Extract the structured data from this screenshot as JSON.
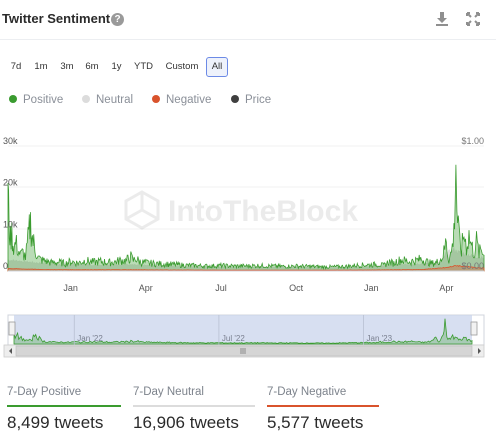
{
  "header": {
    "title": "Twitter Sentiment",
    "help_icon": "question-circle-icon",
    "download_icon": "download-icon",
    "fullscreen_icon": "fullscreen-icon"
  },
  "range_buttons": [
    "7d",
    "1m",
    "3m",
    "6m",
    "1y",
    "YTD",
    "Custom",
    "All"
  ],
  "active_range": "All",
  "watermark": "IntoTheBlock",
  "chart_data": {
    "type": "area",
    "title": "Twitter Sentiment",
    "x_tick_labels": [
      "Jan",
      "Apr",
      "Jul",
      "Oct",
      "Jan",
      "Apr"
    ],
    "y_left": {
      "ticks": [
        "0",
        "10k",
        "20k",
        "30k"
      ],
      "ylim": [
        0,
        30000
      ]
    },
    "y_right": {
      "ticks": [
        "$0.00",
        "$1.00"
      ],
      "ylim": [
        0,
        1
      ]
    },
    "legend_position": "top-left",
    "x_start_month_index": -2.5,
    "x_end_month_index": 16.5,
    "series": [
      {
        "name": "Positive",
        "color": "#3a9b2f",
        "points": [
          [
            -2.5,
            18500
          ],
          [
            -2.45,
            10500
          ],
          [
            -2.4,
            7600
          ],
          [
            -2.35,
            9000
          ],
          [
            -2.3,
            6500
          ],
          [
            -2.25,
            5400
          ],
          [
            -2.2,
            6800
          ],
          [
            -2.1,
            5200
          ],
          [
            -2.0,
            3800
          ],
          [
            -1.9,
            4400
          ],
          [
            -1.8,
            3300
          ],
          [
            -1.7,
            7400
          ],
          [
            -1.65,
            9800
          ],
          [
            -1.6,
            11500
          ],
          [
            -1.55,
            9000
          ],
          [
            -1.5,
            7000
          ],
          [
            -1.45,
            6300
          ],
          [
            -1.4,
            5000
          ],
          [
            -1.3,
            3200
          ],
          [
            -1.2,
            2700
          ],
          [
            -1.0,
            2400
          ],
          [
            -0.8,
            2000
          ],
          [
            -0.5,
            2100
          ],
          [
            -0.2,
            1800
          ],
          [
            0.0,
            2300
          ],
          [
            0.3,
            1900
          ],
          [
            0.6,
            2500
          ],
          [
            0.9,
            2100
          ],
          [
            1.2,
            2300
          ],
          [
            1.5,
            2000
          ],
          [
            1.8,
            2200
          ],
          [
            2.0,
            2600
          ],
          [
            2.2,
            2400
          ],
          [
            2.4,
            3400
          ],
          [
            2.5,
            2500
          ],
          [
            2.6,
            3000
          ],
          [
            2.8,
            2100
          ],
          [
            3.0,
            2000
          ],
          [
            3.3,
            1800
          ],
          [
            3.6,
            1700
          ],
          [
            4.0,
            1600
          ],
          [
            4.5,
            1400
          ],
          [
            5.0,
            1300
          ],
          [
            5.5,
            1200
          ],
          [
            6.0,
            1300
          ],
          [
            6.5,
            1200
          ],
          [
            7.0,
            1200
          ],
          [
            7.5,
            1300
          ],
          [
            8.0,
            1200
          ],
          [
            8.5,
            1100
          ],
          [
            9.0,
            1200
          ],
          [
            9.5,
            1100
          ],
          [
            10.0,
            1000
          ],
          [
            10.5,
            1000
          ],
          [
            11.0,
            1100
          ],
          [
            11.5,
            1400
          ],
          [
            12.0,
            1500
          ],
          [
            12.3,
            1600
          ],
          [
            12.5,
            1300
          ],
          [
            12.7,
            2200
          ],
          [
            12.9,
            1800
          ],
          [
            13.0,
            2300
          ],
          [
            13.2,
            2700
          ],
          [
            13.5,
            2200
          ],
          [
            13.8,
            2500
          ],
          [
            14.0,
            2900
          ],
          [
            14.2,
            2300
          ],
          [
            14.4,
            1800
          ],
          [
            14.6,
            2000
          ],
          [
            14.8,
            3000
          ],
          [
            14.9,
            4500
          ],
          [
            15.0,
            7500
          ],
          [
            15.05,
            4000
          ],
          [
            15.1,
            2800
          ],
          [
            15.2,
            4500
          ],
          [
            15.3,
            9000
          ],
          [
            15.38,
            27000
          ],
          [
            15.42,
            15000
          ],
          [
            15.5,
            8000
          ],
          [
            15.6,
            5000
          ],
          [
            15.7,
            9000
          ],
          [
            15.8,
            6000
          ],
          [
            15.9,
            8500
          ],
          [
            16.0,
            6000
          ],
          [
            16.1,
            4500
          ],
          [
            16.2,
            7000
          ],
          [
            16.3,
            4200
          ],
          [
            16.4,
            5000
          ],
          [
            16.5,
            3800
          ]
        ]
      },
      {
        "name": "Neutral",
        "color": "#dcdcdc",
        "points": [
          [
            -2.5,
            2600
          ],
          [
            -2.0,
            2300
          ],
          [
            -1.5,
            2000
          ],
          [
            -1.0,
            1700
          ],
          [
            -0.5,
            1500
          ],
          [
            0.0,
            1500
          ],
          [
            1.0,
            1400
          ],
          [
            2.0,
            1500
          ],
          [
            3.0,
            1300
          ],
          [
            4.0,
            1100
          ],
          [
            5.0,
            1000
          ],
          [
            6.0,
            900
          ],
          [
            7.0,
            900
          ],
          [
            8.0,
            900
          ],
          [
            9.0,
            900
          ],
          [
            10.0,
            800
          ],
          [
            11.0,
            800
          ],
          [
            12.0,
            1000
          ],
          [
            13.0,
            1400
          ],
          [
            14.0,
            1700
          ],
          [
            14.8,
            2000
          ],
          [
            15.0,
            4200
          ],
          [
            15.3,
            5000
          ],
          [
            15.5,
            4400
          ],
          [
            16.0,
            3600
          ],
          [
            16.5,
            3000
          ]
        ]
      },
      {
        "name": "Negative",
        "color": "#d9532c",
        "points": [
          [
            -2.5,
            600
          ],
          [
            -2.0,
            500
          ],
          [
            -1.0,
            350
          ],
          [
            0.0,
            300
          ],
          [
            2.0,
            300
          ],
          [
            4.0,
            250
          ],
          [
            6.0,
            200
          ],
          [
            8.0,
            200
          ],
          [
            10.0,
            200
          ],
          [
            12.0,
            250
          ],
          [
            14.0,
            350
          ],
          [
            15.0,
            800
          ],
          [
            15.4,
            1300
          ],
          [
            16.0,
            900
          ],
          [
            16.5,
            700
          ]
        ]
      },
      {
        "name": "Price",
        "color": "#3f3f3f",
        "axis": "right",
        "points": [
          [
            -2.5,
            0.0
          ],
          [
            16.5,
            0.0
          ]
        ]
      }
    ],
    "navigator": {
      "tick_labels": [
        "Jan '22",
        "Jul '22",
        "Jan '23"
      ],
      "tick_months": [
        0,
        6,
        12
      ],
      "scrollbar_grip_icon": "scroll-grip-icon",
      "scroll_left_icon": "scroll-left-arrow-icon",
      "scroll_right_icon": "scroll-right-arrow-icon"
    }
  },
  "stats": [
    {
      "label": "7-Day Positive",
      "value": "8,499 tweets",
      "color": "#3a9b2f"
    },
    {
      "label": "7-Day Neutral",
      "value": "16,906 tweets",
      "color": "#dcdcdc"
    },
    {
      "label": "7-Day Negative",
      "value": "5,577 tweets",
      "color": "#d9532c"
    }
  ]
}
